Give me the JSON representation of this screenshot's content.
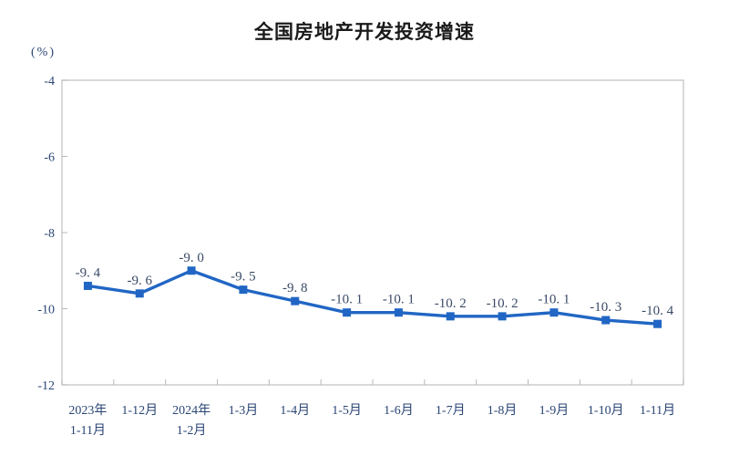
{
  "chart_data": {
    "type": "line",
    "title": "全国房地产开发投资增速",
    "unit_label": "(%)",
    "categories": [
      {
        "line1": "2023年",
        "line2": "1-11月"
      },
      {
        "line1": "1-12月",
        "line2": ""
      },
      {
        "line1": "2024年",
        "line2": "1-2月"
      },
      {
        "line1": "1-3月",
        "line2": ""
      },
      {
        "line1": "1-4月",
        "line2": ""
      },
      {
        "line1": "1-5月",
        "line2": ""
      },
      {
        "line1": "1-6月",
        "line2": ""
      },
      {
        "line1": "1-7月",
        "line2": ""
      },
      {
        "line1": "1-8月",
        "line2": ""
      },
      {
        "line1": "1-9月",
        "line2": ""
      },
      {
        "line1": "1-10月",
        "line2": ""
      },
      {
        "line1": "1-11月",
        "line2": ""
      }
    ],
    "values": [
      -9.4,
      -9.6,
      -9.0,
      -9.5,
      -9.8,
      -10.1,
      -10.1,
      -10.2,
      -10.2,
      -10.1,
      -10.3,
      -10.4
    ],
    "point_labels": [
      "-9. 4",
      "-9. 6",
      "-9. 0",
      "-9. 5",
      "-9. 8",
      "-10. 1",
      "-10. 1",
      "-10. 2",
      "-10. 2",
      "-10. 1",
      "-10. 3",
      "-10. 4"
    ],
    "y_ticks": [
      {
        "value": -4,
        "label": "-4"
      },
      {
        "value": -6,
        "label": "-6"
      },
      {
        "value": -8,
        "label": "-8"
      },
      {
        "value": -10,
        "label": "-10"
      },
      {
        "value": -12,
        "label": "-12"
      }
    ],
    "ylim": [
      -12,
      -4
    ],
    "grid": false,
    "legend": "none",
    "marker": "square",
    "colors": {
      "line": "#2166C4",
      "marker": "#2166C4",
      "point_label_text": "#3A4A66",
      "axis_label_text": "#2A4574",
      "title_text": "#1A1A1A",
      "plot_border": "#C9C9C9",
      "tick": "#B8B8B8",
      "background": "#FFFFFF"
    }
  }
}
